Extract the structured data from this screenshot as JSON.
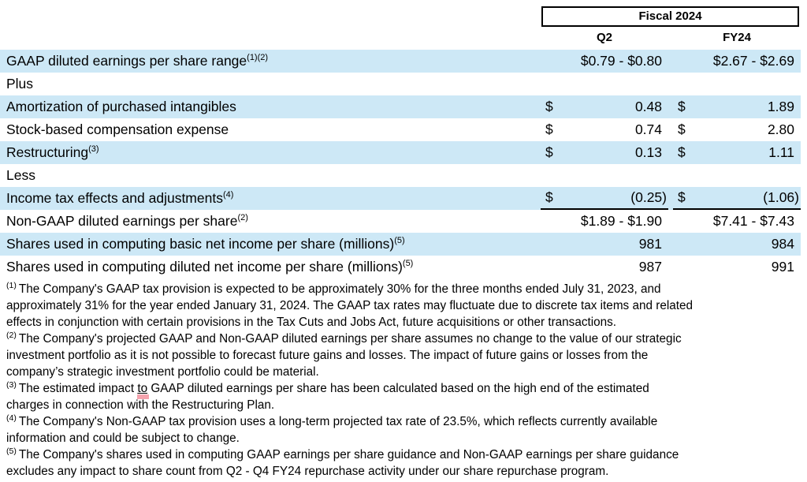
{
  "header": {
    "group_title": "Fiscal 2024",
    "col_q2": "Q2",
    "col_fy24": "FY24"
  },
  "colors": {
    "row_shade": "#cde8f6",
    "grammar_mark": "#f5a3ad",
    "text": "#000000",
    "box_border": "#000000"
  },
  "table": {
    "rows": [
      {
        "label": "GAAP diluted earnings per share range",
        "sup": "(1)(2)",
        "d1": "",
        "v1": "$0.79 - $0.80",
        "d2": "",
        "v2": "$2.67 - $2.69",
        "shade": true,
        "rule": false
      },
      {
        "label": "Plus",
        "sup": "",
        "d1": "",
        "v1": "",
        "d2": "",
        "v2": "",
        "shade": false,
        "rule": false
      },
      {
        "label": "Amortization of purchased intangibles",
        "sup": "",
        "d1": "$",
        "v1": "0.48",
        "d2": "$",
        "v2": "1.89",
        "shade": true,
        "rule": false
      },
      {
        "label": "Stock-based compensation expense",
        "sup": "",
        "d1": "$",
        "v1": "0.74",
        "d2": "$",
        "v2": "2.80",
        "shade": false,
        "rule": false
      },
      {
        "label": "Restructuring",
        "sup": "(3)",
        "d1": "$",
        "v1": "0.13",
        "d2": "$",
        "v2": "1.11",
        "shade": true,
        "rule": false
      },
      {
        "label": "Less",
        "sup": "",
        "d1": "",
        "v1": "",
        "d2": "",
        "v2": "",
        "shade": false,
        "rule": false
      },
      {
        "label": "Income tax effects and adjustments",
        "sup": "(4)",
        "d1": "$",
        "v1": "(0.25)",
        "d2": "$",
        "v2": "(1.06)",
        "shade": true,
        "rule": true
      },
      {
        "label": "Non-GAAP diluted earnings per share",
        "sup": "(2)",
        "d1": "",
        "v1": "$1.89 - $1.90",
        "d2": "",
        "v2": "$7.41 - $7.43",
        "shade": false,
        "rule": false
      },
      {
        "label": "Shares used in computing basic net income per share (millions)",
        "sup": "(5)",
        "d1": "",
        "v1": "981",
        "d2": "",
        "v2": "984",
        "shade": true,
        "rule": false
      },
      {
        "label": "Shares used in computing diluted net income per share (millions)",
        "sup": "(5)",
        "d1": "",
        "v1": "987",
        "d2": "",
        "v2": "991",
        "shade": false,
        "rule": false
      }
    ]
  },
  "footnotes": {
    "fn1": {
      "marker": "(1)",
      "text": "The Company's GAAP tax provision is expected to be approximately 30% for the three months ended July 31, 2023, and\napproximately 31% for the year ended January 31, 2024. The GAAP tax rates may fluctuate due to discrete tax items and related\neffects in conjunction with certain provisions in the Tax Cuts and Jobs Act, future acquisitions or other transactions."
    },
    "fn2": {
      "marker": "(2)",
      "text": "The Company's projected GAAP and Non-GAAP diluted earnings per share assumes no change to the value of our strategic\ninvestment portfolio as it is not possible to forecast future gains and losses. The impact of future gains or losses from the\ncompany’s strategic investment portfolio could be material."
    },
    "fn3": {
      "marker": "(3)",
      "text_pre": "The estimated impact ",
      "text_marked": "to",
      "text_post": " GAAP diluted earnings per share has been calculated based on the high end of the estimated\ncharges in connection with the Restructuring Plan."
    },
    "fn4": {
      "marker": "(4)",
      "text": "The Company's Non-GAAP tax provision uses a long-term projected tax rate of 23.5%, which reflects currently available\ninformation and could be subject to change."
    },
    "fn5": {
      "marker": "(5)",
      "text": "The Company's shares used in computing GAAP earnings per share guidance and Non-GAAP earnings per share guidance\nexcludes any impact to share count from Q2 - Q4 FY24 repurchase activity under our share repurchase program."
    }
  }
}
